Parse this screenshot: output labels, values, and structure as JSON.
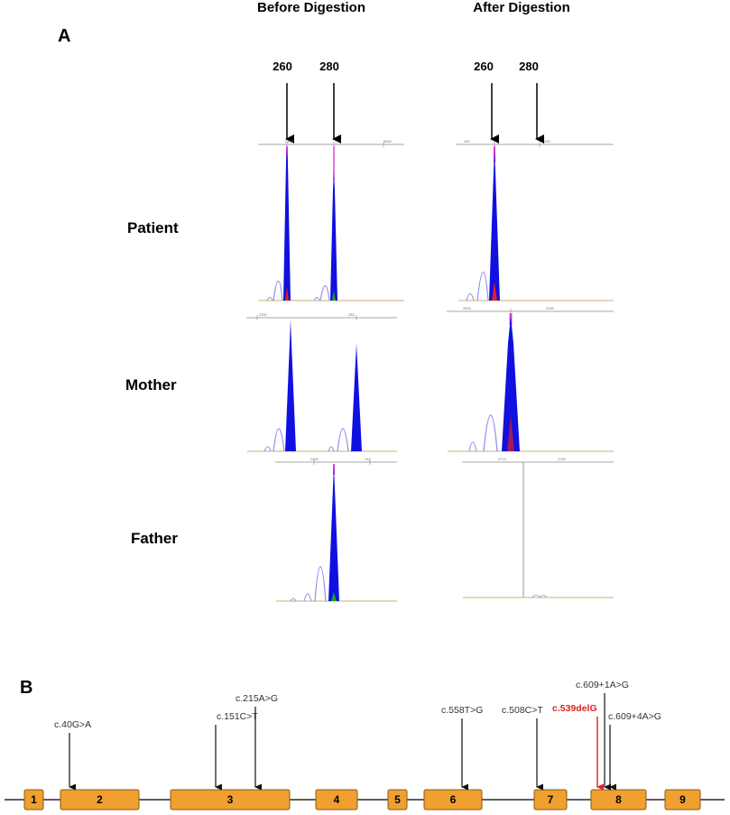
{
  "panel_a": {
    "label": "A",
    "column_headers": [
      "Before Digestion",
      "After Digestion"
    ],
    "size_markers": [
      "260",
      "280"
    ],
    "rows": [
      "Patient",
      "Mother",
      "Father"
    ],
    "axis_ticks": {
      "before_patient": [
        "2415",
        "8800"
      ],
      "after_patient": [
        "260",
        "280"
      ],
      "before_mother": [
        "2300",
        "280"
      ],
      "after_mother": [
        "2600",
        "2000"
      ],
      "before_father": [
        "2400",
        "240"
      ],
      "after_father": [
        "2774",
        "2700"
      ]
    }
  },
  "panel_b": {
    "label": "B",
    "exons": [
      "1",
      "2",
      "3",
      "4",
      "5",
      "6",
      "7",
      "8",
      "9"
    ],
    "variants": [
      "c.40G>A",
      "c.151C>T",
      "c.215A>G",
      "c.558T>G",
      "c.508C>T",
      "c.539delG",
      "c.609+1A>G",
      "c.609+4A>G"
    ],
    "highlight_variant": "c.539delG",
    "colors": {
      "exon_fill": "#F0A030",
      "exon_stroke": "#8A5A10",
      "highlight": "#E02020",
      "peak": "#1010E0",
      "peak_light": "#9090F0"
    }
  }
}
